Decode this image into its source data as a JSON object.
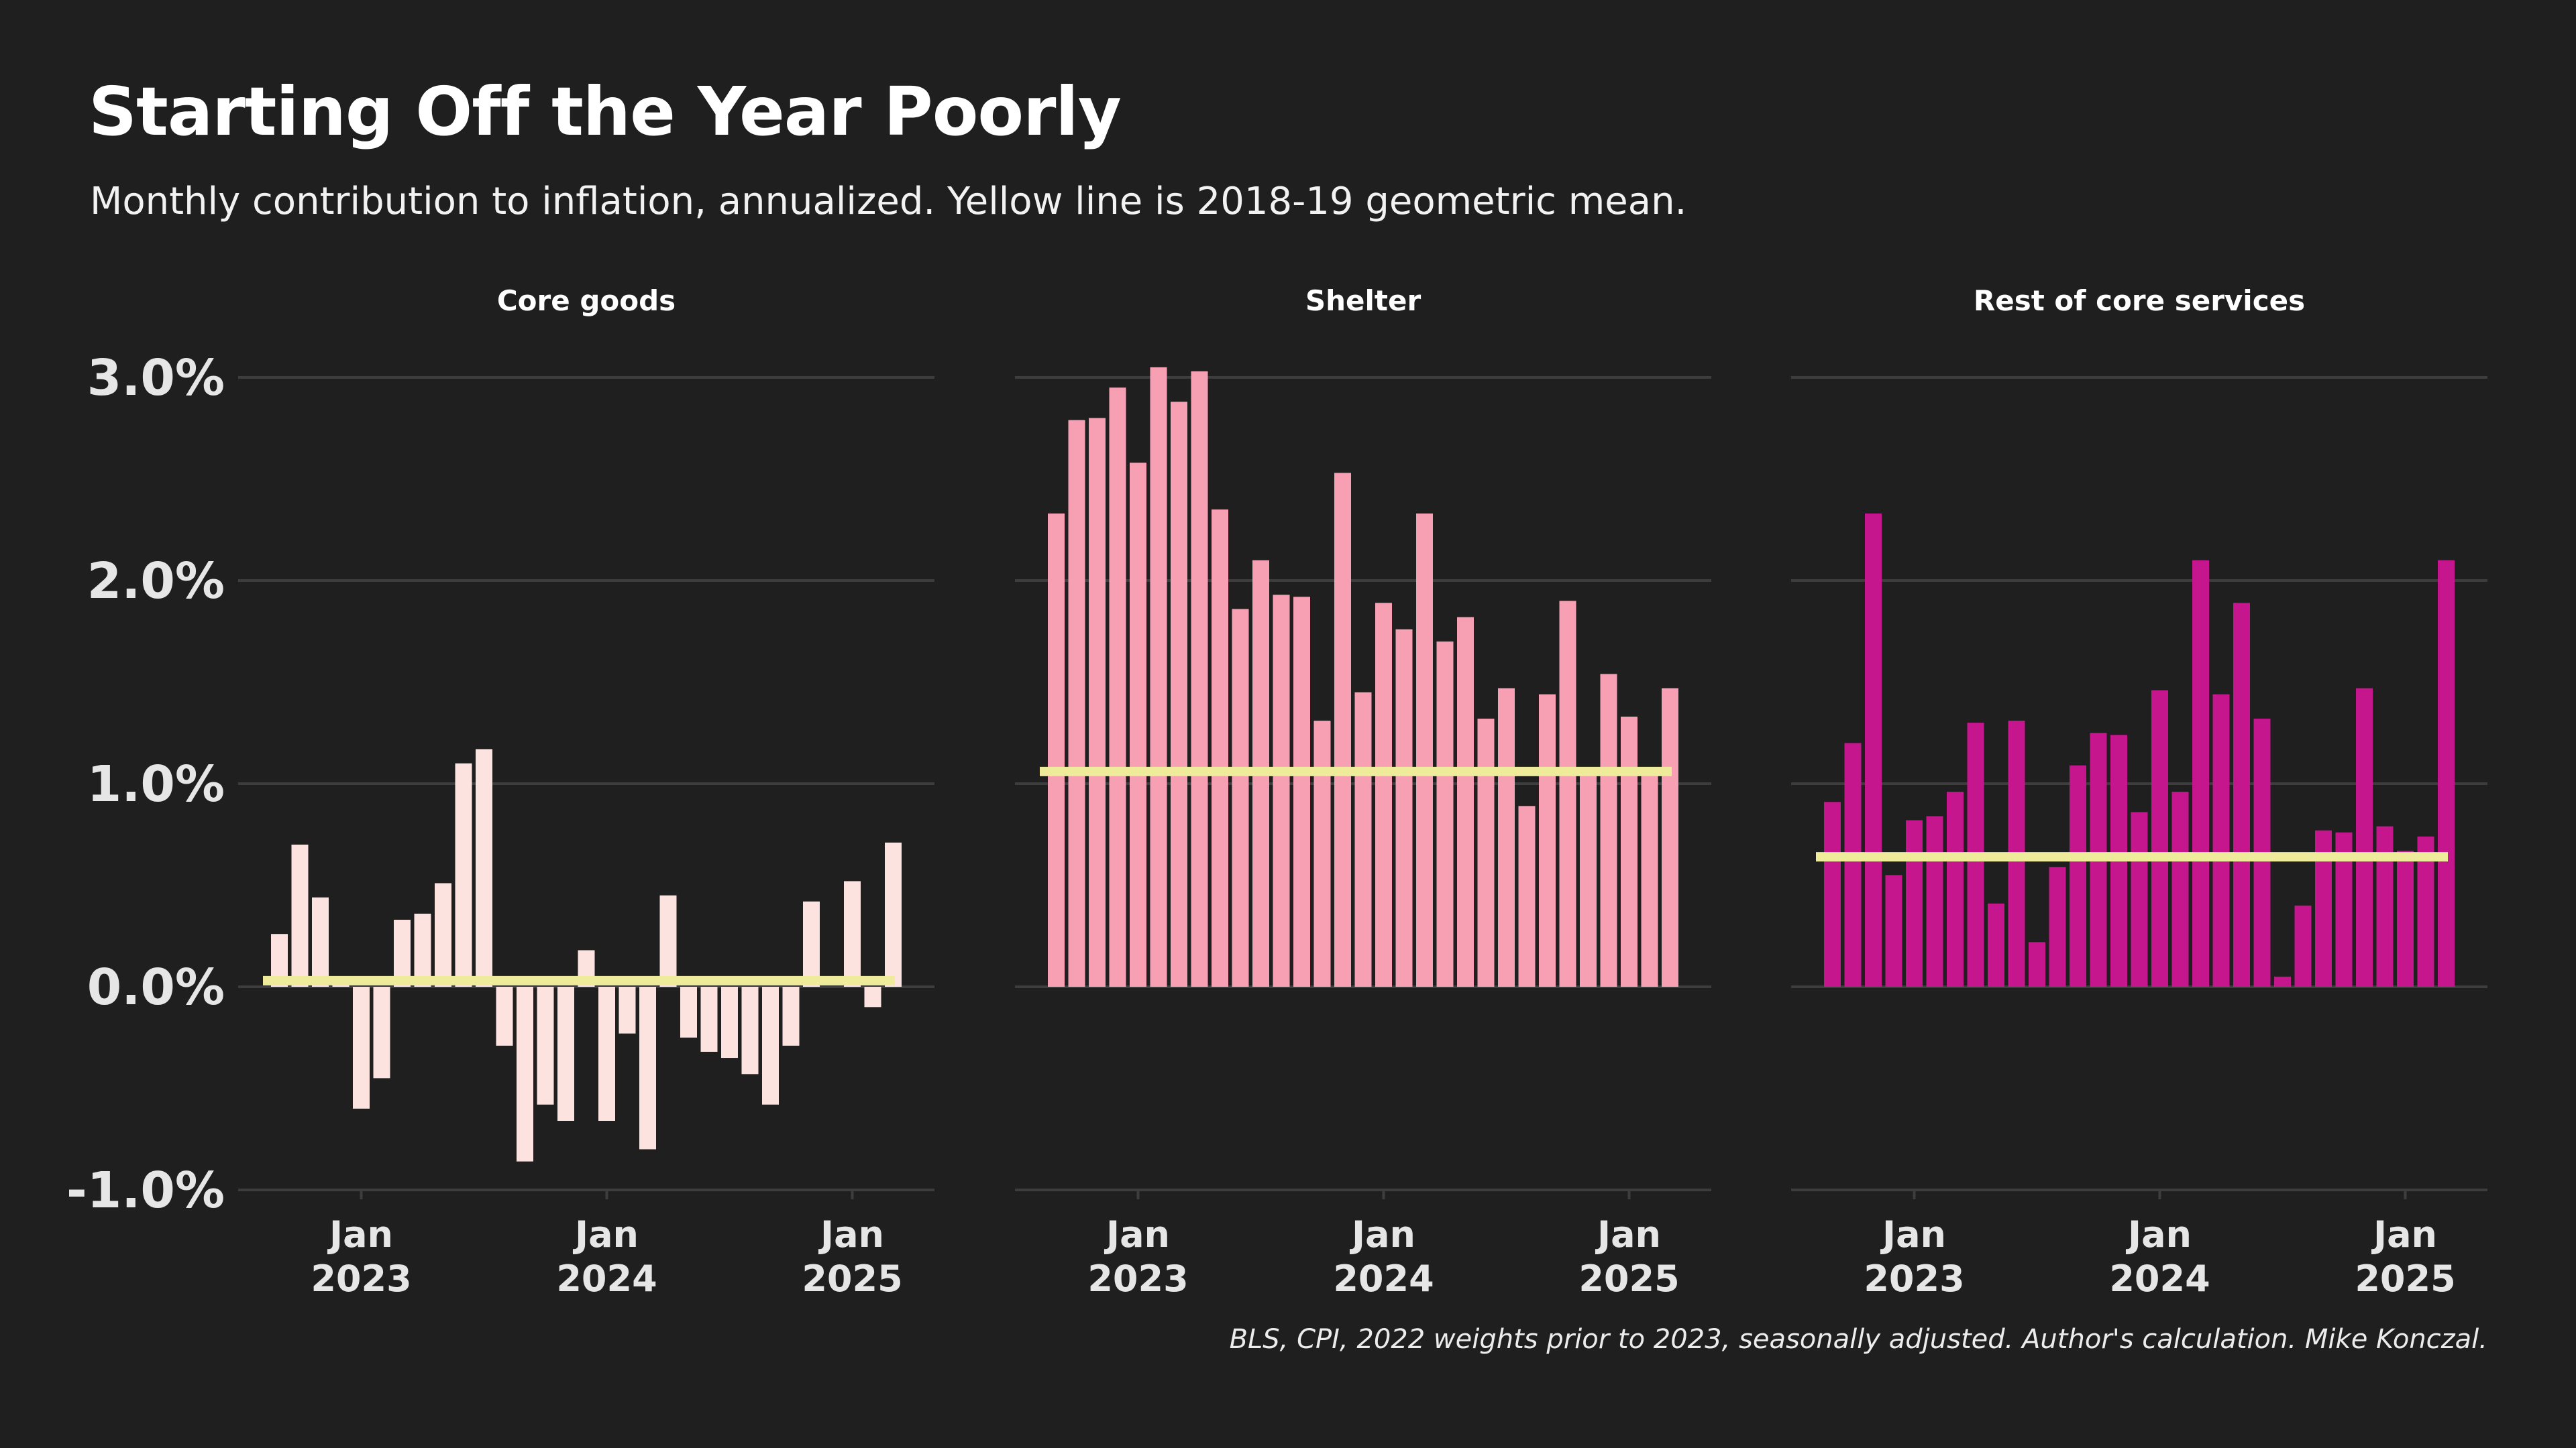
{
  "title": "Starting Off the Year Poorly",
  "subtitle": "Monthly contribution to inflation, annualized. Yellow line is 2018-19 geometric mean.",
  "caption": "BLS, CPI, 2022 weights prior to 2023, seasonally adjusted. Author's calculation. Mike Konczal.",
  "colors": {
    "background": "#1f1f1f",
    "grid": "#3d3d3d",
    "mean_line": "#eeec9a",
    "core_goods": "#fde3df",
    "shelter": "#f7a0b4",
    "rest_core_services": "#c6168d"
  },
  "chart_data": [
    {
      "type": "bar",
      "title": "Core goods",
      "color": "#fde3df",
      "ylim": [
        -1.0,
        3.0
      ],
      "yticks": [
        "3.0%",
        "2.0%",
        "1.0%",
        "0.0%",
        "-1.0%"
      ],
      "ytick_values": [
        3.0,
        2.0,
        1.0,
        0.0,
        -1.0
      ],
      "xticks": [
        [
          "Jan",
          "2023"
        ],
        [
          "Jan",
          "2024"
        ],
        [
          "Jan",
          "2025"
        ]
      ],
      "xtick_month_index": [
        4,
        16,
        28
      ],
      "x_start": "2022-09",
      "mean": 0.03,
      "values": [
        0.26,
        0.7,
        0.44,
        0.01,
        -0.6,
        -0.45,
        0.33,
        0.36,
        0.51,
        1.1,
        1.17,
        -0.29,
        -0.86,
        -0.58,
        -0.66,
        0.18,
        -0.66,
        -0.23,
        -0.8,
        0.45,
        -0.25,
        -0.32,
        -0.35,
        -0.43,
        -0.58,
        -0.29,
        0.42,
        0.0,
        0.52,
        -0.1,
        0.71
      ]
    },
    {
      "type": "bar",
      "title": "Shelter",
      "color": "#f7a0b4",
      "ylim": [
        -1.0,
        3.0
      ],
      "xticks": [
        [
          "Jan",
          "2023"
        ],
        [
          "Jan",
          "2024"
        ],
        [
          "Jan",
          "2025"
        ]
      ],
      "xtick_month_index": [
        4,
        16,
        28
      ],
      "x_start": "2022-09",
      "mean": 1.06,
      "values": [
        2.33,
        2.79,
        2.8,
        2.95,
        2.58,
        3.05,
        2.88,
        3.03,
        2.35,
        1.86,
        2.1,
        1.93,
        1.92,
        1.31,
        2.53,
        1.45,
        1.89,
        1.76,
        2.33,
        1.7,
        1.82,
        1.32,
        1.47,
        0.89,
        1.44,
        1.9,
        1.05,
        1.54,
        1.33,
        1.05,
        1.47
      ]
    },
    {
      "type": "bar",
      "title": "Rest of core services",
      "color": "#c6168d",
      "ylim": [
        -1.0,
        3.0
      ],
      "xticks": [
        [
          "Jan",
          "2023"
        ],
        [
          "Jan",
          "2024"
        ],
        [
          "Jan",
          "2025"
        ]
      ],
      "xtick_month_index": [
        4,
        16,
        28
      ],
      "x_start": "2022-09",
      "mean": 0.64,
      "values": [
        0.91,
        1.2,
        2.33,
        0.55,
        0.82,
        0.84,
        0.96,
        1.3,
        0.41,
        1.31,
        0.22,
        0.59,
        1.09,
        1.25,
        1.24,
        0.86,
        1.46,
        0.96,
        2.1,
        1.44,
        1.89,
        1.32,
        0.05,
        0.4,
        0.77,
        0.76,
        1.47,
        0.79,
        0.67,
        0.74,
        2.1
      ]
    }
  ]
}
